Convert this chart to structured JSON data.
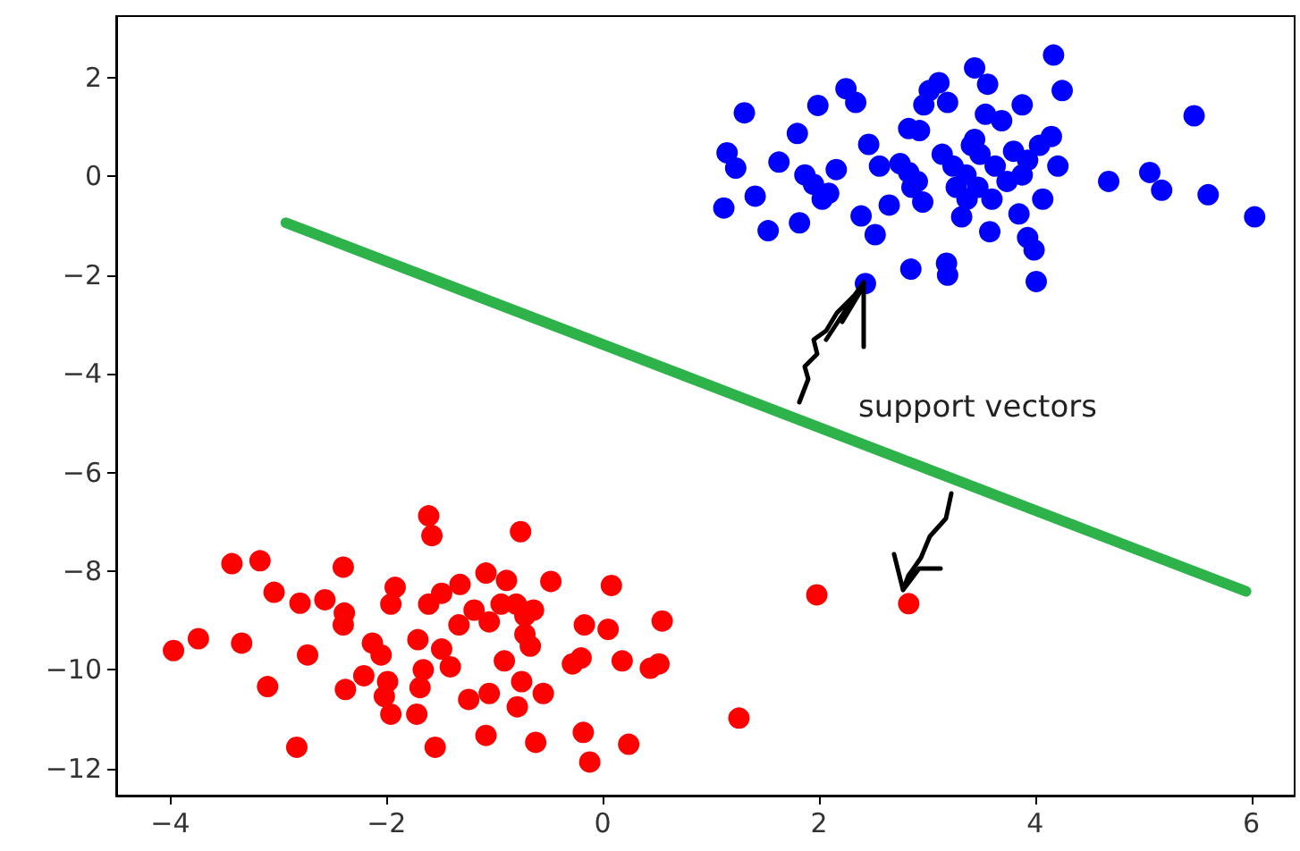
{
  "chart_data": {
    "type": "scatter",
    "xlim": [
      -4.5,
      6.4
    ],
    "ylim": [
      -12.55,
      3.25
    ],
    "xticks": [
      -4,
      -2,
      0,
      2,
      4,
      6
    ],
    "yticks": [
      -12,
      -10,
      -8,
      -6,
      -4,
      -2,
      0,
      2
    ],
    "grid": false,
    "marker": "circle",
    "annotations": [
      "support vectors"
    ],
    "series": [
      {
        "color": "#0000ff",
        "x": [
          4.17,
          4.25,
          3.44,
          3.56,
          3.11,
          3.02,
          3.19,
          2.97,
          2.25,
          2.34,
          1.99,
          1.31,
          3.88,
          3.54,
          3.69,
          5.47,
          1.8,
          2.83,
          2.93,
          4.15,
          2.46,
          3.44,
          1.15,
          1.23,
          1.63,
          2.16,
          1.87,
          1.95,
          2.56,
          2.75,
          2.83,
          2.91,
          3.14,
          3.24,
          3.36,
          3.49,
          3.63,
          3.8,
          3.93,
          4.04,
          4.21,
          3.74,
          3.88,
          4.68,
          5.06,
          5.17,
          5.6,
          6.03,
          1.12,
          1.41,
          1.53,
          1.82,
          2.03,
          2.09,
          2.39,
          2.52,
          2.65,
          2.96,
          3.32,
          3.37,
          3.58,
          3.6,
          3.85,
          4.07,
          3.93,
          3.99,
          2.85,
          3.18,
          3.19,
          4.01,
          2.43,
          3.41,
          3.47,
          2.86,
          3.27
        ],
        "values": [
          2.46,
          1.74,
          2.2,
          1.87,
          1.9,
          1.74,
          1.5,
          1.45,
          1.78,
          1.5,
          1.44,
          1.29,
          1.45,
          1.26,
          1.13,
          1.23,
          0.87,
          0.97,
          0.93,
          0.81,
          0.65,
          0.75,
          0.48,
          0.17,
          0.29,
          0.14,
          0.03,
          -0.16,
          0.21,
          0.26,
          0.08,
          -0.1,
          0.45,
          0.21,
          0.03,
          0.45,
          0.21,
          0.51,
          0.33,
          0.63,
          0.21,
          -0.1,
          0.03,
          -0.1,
          0.08,
          -0.28,
          -0.37,
          -0.82,
          -0.64,
          -0.4,
          -1.1,
          -0.94,
          -0.46,
          -0.34,
          -0.8,
          -1.18,
          -0.58,
          -0.52,
          -0.82,
          -0.46,
          -1.12,
          -0.46,
          -0.76,
          -0.46,
          -1.24,
          -1.49,
          -1.88,
          -1.76,
          -2.0,
          -2.13,
          -2.17,
          0.63,
          -0.22,
          -0.22,
          -0.22
        ]
      },
      {
        "color": "#ff0000",
        "x": [
          -1.61,
          -1.58,
          -0.76,
          -3.43,
          -3.17,
          -2.4,
          -3.04,
          -2.8,
          -2.57,
          -2.39,
          -2.4,
          -1.92,
          -1.96,
          -1.61,
          -1.49,
          -1.32,
          -1.08,
          -0.89,
          -0.48,
          0.08,
          -1.19,
          -0.94,
          -0.8,
          -0.64,
          -1.33,
          -1.05,
          -0.72,
          0.55,
          -0.17,
          0.05,
          -3.97,
          -3.74,
          -3.34,
          -2.73,
          -2.13,
          -2.05,
          -1.71,
          -1.49,
          -1.41,
          -1.66,
          -0.91,
          -0.67,
          -0.28,
          -0.2,
          0.18,
          0.44,
          0.52,
          -3.1,
          -2.38,
          -2.21,
          -1.99,
          -2.02,
          -1.96,
          -1.72,
          -1.69,
          -1.24,
          -1.05,
          -0.79,
          -0.75,
          -0.55,
          -2.83,
          -1.55,
          -1.08,
          -0.62,
          -0.18,
          -0.12,
          0.24,
          -0.72,
          1.26,
          1.98,
          2.83
        ],
        "values": [
          -6.88,
          -7.28,
          -7.2,
          -7.85,
          -7.79,
          -7.92,
          -8.43,
          -8.65,
          -8.58,
          -8.85,
          -9.09,
          -8.33,
          -8.67,
          -8.67,
          -8.45,
          -8.27,
          -8.04,
          -8.19,
          -8.21,
          -8.29,
          -8.79,
          -8.67,
          -8.67,
          -8.79,
          -9.09,
          -9.03,
          -9.28,
          -9.01,
          -9.09,
          -9.18,
          -9.61,
          -9.37,
          -9.46,
          -9.7,
          -9.46,
          -9.7,
          -9.39,
          -9.58,
          -9.94,
          -10.0,
          -9.82,
          -9.52,
          -9.88,
          -9.76,
          -9.82,
          -9.97,
          -9.88,
          -10.34,
          -10.4,
          -10.12,
          -10.24,
          -10.54,
          -10.9,
          -10.9,
          -10.36,
          -10.6,
          -10.48,
          -10.75,
          -10.24,
          -10.48,
          -11.57,
          -11.57,
          -11.33,
          -11.47,
          -11.27,
          -11.87,
          -11.51,
          -8.91,
          -10.98,
          -8.48,
          -8.66
        ]
      },
      {
        "type": "line",
        "color": "#2db34a",
        "marker": "none",
        "line_style": "solid",
        "x": [
          -2.93,
          5.95
        ],
        "values": [
          -0.94,
          -8.41
        ]
      }
    ]
  }
}
